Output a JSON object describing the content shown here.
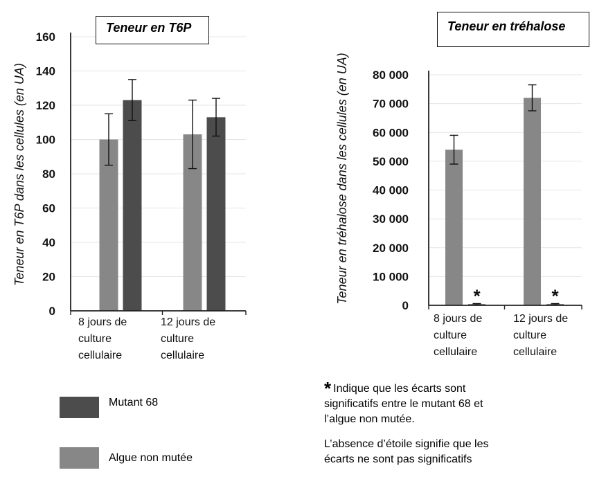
{
  "colors": {
    "mutant": "#4c4c4c",
    "wild": "#878787",
    "axis": "#222222",
    "grid": "#e6e6e6"
  },
  "chart_data": [
    {
      "type": "bar",
      "title": "Teneur en T6P",
      "ylabel": "Teneur en T6P dans les cellules (en UA)",
      "categories": [
        "8 jours de culture cellulaire",
        "12 jours de culture cellulaire"
      ],
      "category_lines": [
        [
          "8 jours de",
          "culture",
          "cellulaire"
        ],
        [
          "12 jours de",
          "culture",
          "cellulaire"
        ]
      ],
      "ylim": [
        0,
        160
      ],
      "yticks": [
        0,
        20,
        40,
        60,
        80,
        100,
        120,
        140,
        160
      ],
      "ytick_labels": [
        "0",
        "20",
        "40",
        "60",
        "80",
        "100",
        "120",
        "140",
        "160"
      ],
      "grid": true,
      "series": [
        {
          "name": "Algue non mutée",
          "color": "#878787",
          "values": [
            100,
            103
          ],
          "errors": [
            15,
            20
          ],
          "stars": [
            false,
            false
          ]
        },
        {
          "name": "Mutant 68",
          "color": "#4c4c4c",
          "values": [
            123,
            113
          ],
          "errors": [
            12,
            11
          ],
          "stars": [
            false,
            false
          ]
        }
      ]
    },
    {
      "type": "bar",
      "title": "Teneur en tréhalose",
      "ylabel": "Teneur en tréhalose dans les cellules (en UA)",
      "categories": [
        "8 jours de culture cellulaire",
        "12 jours de culture cellulaire"
      ],
      "category_lines": [
        [
          "8 jours de",
          "culture",
          "cellulaire"
        ],
        [
          "12 jours de",
          "culture",
          "cellulaire"
        ]
      ],
      "ylim": [
        0,
        80000
      ],
      "yticks": [
        0,
        10000,
        20000,
        30000,
        40000,
        50000,
        60000,
        70000,
        80000
      ],
      "ytick_labels": [
        "0",
        "10 000",
        "20 000",
        "30 000",
        "40 000",
        "50 000",
        "60 000",
        "70 000",
        "80 000"
      ],
      "grid": true,
      "series": [
        {
          "name": "Algue non mutée",
          "color": "#878787",
          "values": [
            54000,
            72000
          ],
          "errors": [
            5000,
            4500
          ],
          "stars": [
            false,
            false
          ]
        },
        {
          "name": "Mutant 68",
          "color": "#4c4c4c",
          "values": [
            400,
            400
          ],
          "errors": [
            200,
            200
          ],
          "stars": [
            true,
            true
          ]
        }
      ]
    }
  ],
  "legend": [
    {
      "label": "Mutant 68",
      "color": "#4c4c4c"
    },
    {
      "label": "Algue non mutée",
      "color": "#878787"
    }
  ],
  "note": {
    "star": "*",
    "line1": "Indique que les écarts sont",
    "line2": "significatifs entre le mutant 68 et",
    "line3": "l’algue non mutée.",
    "absence1": "L’absence d’étoile signifie que les",
    "absence2": "écarts ne sont pas significatifs"
  }
}
